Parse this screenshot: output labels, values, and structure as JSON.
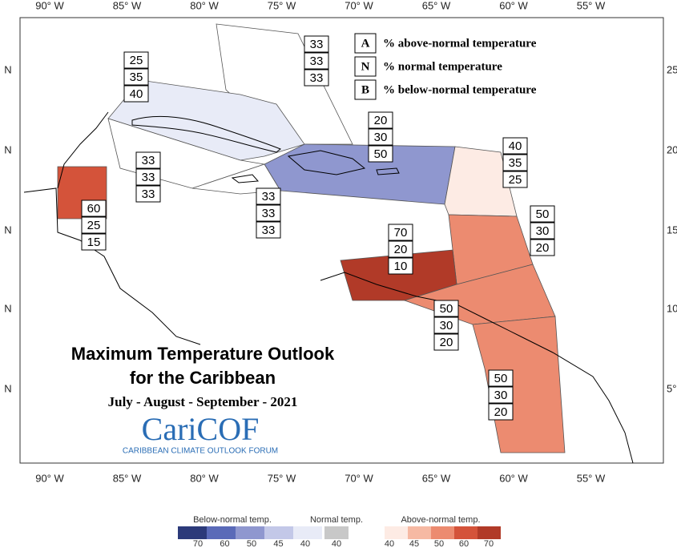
{
  "map": {
    "x_axis_labels": [
      "90° W",
      "85° W",
      "80° W",
      "75° W",
      "70° W",
      "65° W",
      "60° W",
      "55° W"
    ],
    "y_axis_labels_left": [
      "N",
      "N",
      "N",
      "N",
      "N"
    ],
    "y_axis_labels_right": [
      "25",
      "20",
      "15",
      "10",
      "5°"
    ],
    "key": [
      {
        "letter": "A",
        "text": "% above-normal temperature"
      },
      {
        "letter": "N",
        "text": "% normal temperature"
      },
      {
        "letter": "B",
        "text": "% below-normal temperature"
      }
    ],
    "title": "Maximum Temperature Outlook",
    "title_line2": "for the Caribbean",
    "period": "July - August - September - 2021",
    "logo": "CariCOF",
    "logo_subtitle": "CARIBBEAN CLIMATE OUTLOOK FORUM",
    "regions": [
      {
        "above": 33,
        "normal": 33,
        "below": 33,
        "color": "#ffffff"
      },
      {
        "above": 25,
        "normal": 35,
        "below": 40,
        "color": "#e8ebf7"
      },
      {
        "above": 20,
        "normal": 30,
        "below": 50,
        "color": "#8f97cf"
      },
      {
        "above": 40,
        "normal": 35,
        "below": 25,
        "color": "#fdebe4"
      },
      {
        "above": 50,
        "normal": 30,
        "below": 20,
        "color": "#ec8b70"
      },
      {
        "above": 60,
        "normal": 25,
        "below": 15,
        "color": "#d4533a"
      },
      {
        "above": 33,
        "normal": 33,
        "below": 33,
        "color": "#ffffff"
      },
      {
        "above": 33,
        "normal": 33,
        "below": 33,
        "color": "#ffffff"
      },
      {
        "above": 70,
        "normal": 20,
        "below": 10,
        "color": "#b13a28"
      },
      {
        "above": 50,
        "normal": 30,
        "below": 20,
        "color": "#ec8b70"
      },
      {
        "above": 50,
        "normal": 30,
        "below": 20,
        "color": "#ec8b70"
      }
    ]
  },
  "legend": {
    "below_title": "Below-normal temp.",
    "below_ticks": [
      70,
      60,
      50,
      45,
      40
    ],
    "below_colors": [
      "#2c3a7a",
      "#5a6ab8",
      "#8f97cf",
      "#c3c8e8",
      "#e8ebf7"
    ],
    "normal_title": "Normal temp.",
    "normal_ticks": [
      40
    ],
    "normal_color": "#c8c8c8",
    "above_title": "Above-normal temp.",
    "above_ticks": [
      40,
      45,
      50,
      60,
      70
    ],
    "above_colors": [
      "#fdebe4",
      "#f6b9a3",
      "#ec8b70",
      "#d4533a",
      "#b13a28"
    ]
  }
}
